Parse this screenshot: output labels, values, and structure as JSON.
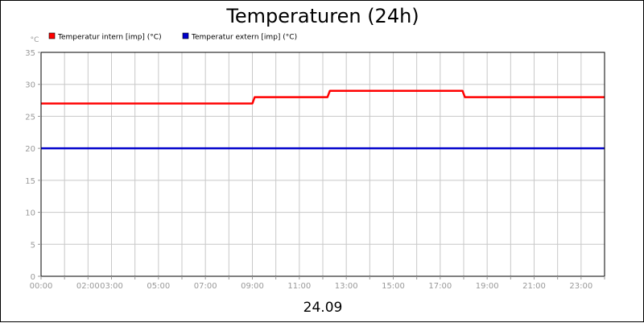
{
  "chart_data": {
    "type": "line",
    "title": "Temperaturen (24h)",
    "ylabel": "°C",
    "xlabel": "24.09",
    "ylim": [
      0,
      35
    ],
    "yticks": [
      0,
      5,
      10,
      15,
      20,
      25,
      30,
      35
    ],
    "xlim": [
      0,
      24
    ],
    "xticks": [
      {
        "x": 0,
        "label": "00:00"
      },
      {
        "x": 2,
        "label": "02:00"
      },
      {
        "x": 3,
        "label": "03:00"
      },
      {
        "x": 5,
        "label": "05:00"
      },
      {
        "x": 7,
        "label": "07:00"
      },
      {
        "x": 9,
        "label": "09:00"
      },
      {
        "x": 11,
        "label": "11:00"
      },
      {
        "x": 13,
        "label": "13:00"
      },
      {
        "x": 15,
        "label": "15:00"
      },
      {
        "x": 17,
        "label": "17:00"
      },
      {
        "x": 19,
        "label": "19:00"
      },
      {
        "x": 21,
        "label": "21:00"
      },
      {
        "x": 23,
        "label": "23:00"
      }
    ],
    "grid": true,
    "legend_position": "top-left",
    "series": [
      {
        "name": "Temperatur intern [imp] (°C)",
        "color": "#ff0000",
        "x": [
          0,
          9.0,
          9.1,
          12.2,
          12.3,
          17.95,
          18.05,
          24
        ],
        "y": [
          27,
          27,
          28,
          28,
          29,
          29,
          28,
          28
        ]
      },
      {
        "name": "Temperatur extern [imp] (°C)",
        "color": "#0000cc",
        "x": [
          0,
          24
        ],
        "y": [
          20,
          20
        ]
      }
    ]
  }
}
